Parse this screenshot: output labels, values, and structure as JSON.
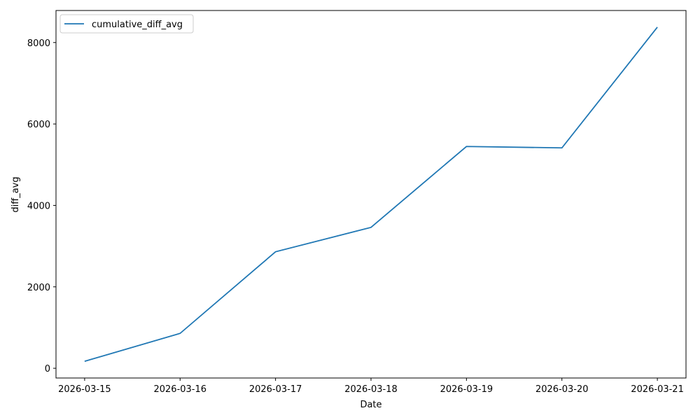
{
  "chart_data": {
    "type": "line",
    "x_label": "Date",
    "y_label": "diff_avg",
    "categories": [
      "2026-03-15",
      "2026-03-16",
      "2026-03-17",
      "2026-03-18",
      "2026-03-19",
      "2026-03-20",
      "2026-03-21"
    ],
    "series": [
      {
        "name": "cumulative_diff_avg",
        "color": "#1f77b4",
        "values": [
          171,
          857,
          2861,
          3460,
          5447,
          5413,
          8377
        ]
      }
    ],
    "ylim": [
      -239,
      8787
    ],
    "yticks": [
      0,
      2000,
      4000,
      6000,
      8000
    ],
    "legend": "upper left"
  }
}
